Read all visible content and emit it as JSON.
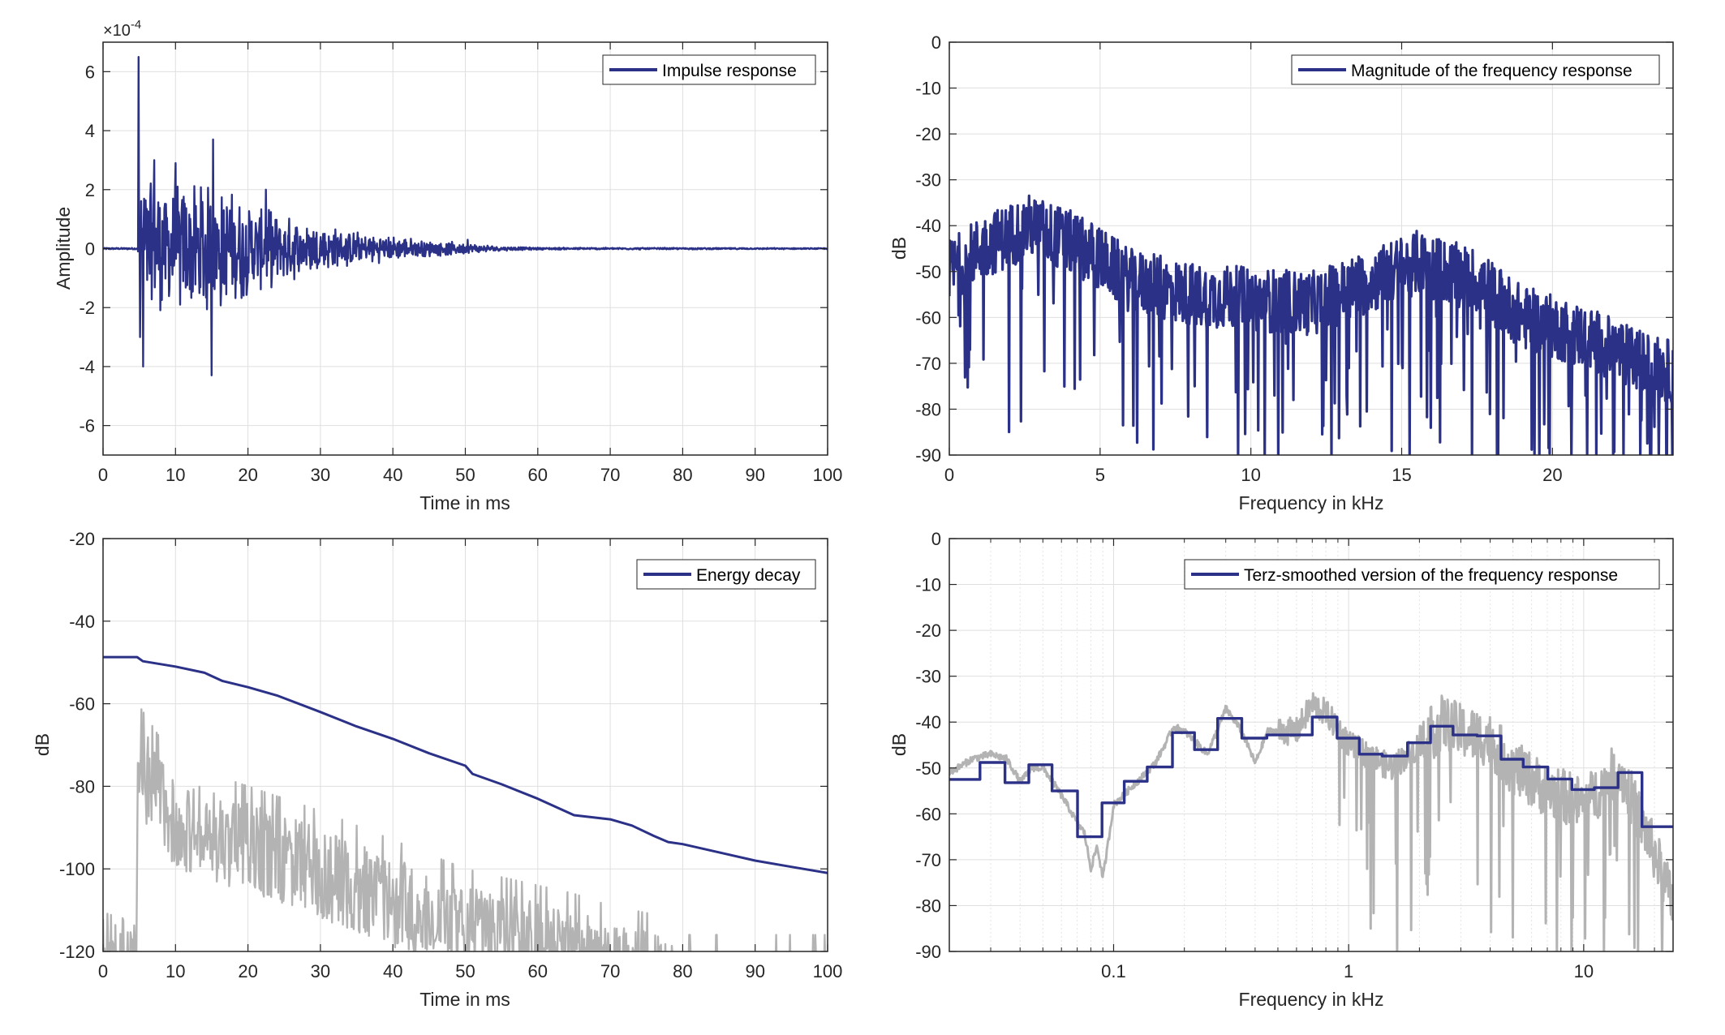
{
  "colors": {
    "series": "#2B3187",
    "gray": "#B3B3B3",
    "grid": "#DFDFDF",
    "axis": "#262626"
  },
  "chart_data": [
    {
      "id": "impulse",
      "type": "line",
      "title": "",
      "xlabel": "Time in ms",
      "ylabel": "Amplitude",
      "y_exponent_label": "×10",
      "y_exponent_power": "-4",
      "xlim": [
        0,
        100
      ],
      "ylim": [
        -7,
        7
      ],
      "xticks": [
        0,
        10,
        20,
        30,
        40,
        50,
        60,
        70,
        80,
        90,
        100
      ],
      "xtick_labels": [
        "0",
        "10",
        "20",
        "30",
        "40",
        "50",
        "60",
        "70",
        "80",
        "90",
        "100"
      ],
      "yticks": [
        -6,
        -4,
        -2,
        0,
        2,
        4,
        6
      ],
      "ytick_labels": [
        "-6",
        "-4",
        "-2",
        "0",
        "2",
        "4",
        "6"
      ],
      "grid": true,
      "legend": {
        "position": "top-right",
        "entries": [
          "Impulse response"
        ]
      },
      "series": [
        {
          "name": "Impulse response",
          "onset_ms": 4.8,
          "peak_points": [
            [
              4.9,
              6.5
            ],
            [
              5.1,
              -3.0
            ],
            [
              5.5,
              -4.0
            ],
            [
              7.1,
              3.0
            ],
            [
              10.0,
              2.9
            ],
            [
              15.2,
              3.7
            ],
            [
              15.0,
              -4.3
            ],
            [
              22.5,
              2.0
            ],
            [
              50.3,
              0.3
            ]
          ],
          "envelope": [
            [
              4.8,
              3.0
            ],
            [
              10,
              2.4
            ],
            [
              15,
              2.4
            ],
            [
              20,
              1.7
            ],
            [
              25,
              1.2
            ],
            [
              30,
              0.9
            ],
            [
              35,
              0.6
            ],
            [
              40,
              0.45
            ],
            [
              45,
              0.3
            ],
            [
              50,
              0.2
            ],
            [
              55,
              0.08
            ],
            [
              60,
              0.04
            ],
            [
              100,
              0.02
            ]
          ]
        }
      ]
    },
    {
      "id": "magnitude",
      "type": "line",
      "title": "",
      "xlabel": "Frequency in kHz",
      "ylabel": "dB",
      "xlim": [
        0,
        24
      ],
      "ylim": [
        -90,
        0
      ],
      "xticks": [
        0,
        5,
        10,
        15,
        20
      ],
      "xtick_labels": [
        "0",
        "5",
        "10",
        "15",
        "20"
      ],
      "yticks": [
        0,
        -10,
        -20,
        -30,
        -40,
        -50,
        -60,
        -70,
        -80,
        -90
      ],
      "ytick_labels": [
        "0",
        "-10",
        "-20",
        "-30",
        "-40",
        "-50",
        "-60",
        "-70",
        "-80",
        "-90"
      ],
      "grid": true,
      "legend": {
        "position": "top-right",
        "entries": [
          "Magnitude of the frequency response"
        ]
      },
      "series": [
        {
          "name": "Magnitude of the frequency response",
          "envelope_db": [
            [
              0,
              -50
            ],
            [
              1,
              -45
            ],
            [
              2.7,
              -40
            ],
            [
              4.5,
              -45
            ],
            [
              6,
              -52
            ],
            [
              8,
              -55
            ],
            [
              10,
              -56
            ],
            [
              12,
              -57
            ],
            [
              14,
              -52
            ],
            [
              15.5,
              -48
            ],
            [
              17.5,
              -52
            ],
            [
              19,
              -60
            ],
            [
              21,
              -64
            ],
            [
              23,
              -70
            ],
            [
              24,
              -72
            ]
          ]
        }
      ]
    },
    {
      "id": "energy_decay",
      "type": "line",
      "title": "",
      "xlabel": "Time in ms",
      "ylabel": "dB",
      "xlim": [
        0,
        100
      ],
      "ylim": [
        -120,
        -20
      ],
      "xticks": [
        0,
        10,
        20,
        30,
        40,
        50,
        60,
        70,
        80,
        90,
        100
      ],
      "xtick_labels": [
        "0",
        "10",
        "20",
        "30",
        "40",
        "50",
        "60",
        "70",
        "80",
        "90",
        "100"
      ],
      "yticks": [
        -20,
        -40,
        -60,
        -80,
        -100,
        -120
      ],
      "ytick_labels": [
        "-20",
        "-40",
        "-60",
        "-80",
        "-100",
        "-120"
      ],
      "grid": true,
      "legend": {
        "position": "top-right",
        "entries": [
          "Energy decay"
        ]
      },
      "series": [
        {
          "name": "Energy decay",
          "x": [
            0,
            4.7,
            5.5,
            10,
            14,
            16.5,
            20,
            24,
            30,
            35,
            40,
            45,
            50,
            51,
            55,
            60,
            65,
            70,
            73,
            76,
            78,
            80,
            85,
            90,
            95,
            100
          ],
          "y": [
            -48.7,
            -48.7,
            -49.7,
            -51,
            -52.5,
            -54.5,
            -56,
            -58,
            -62,
            -65.5,
            -68.5,
            -72,
            -75,
            -77,
            -79.5,
            -83,
            -87,
            -88,
            -89.5,
            -92,
            -93.5,
            -94,
            -96,
            -98,
            -99.5,
            -101
          ]
        },
        {
          "name": "Squared impulse response (dB)",
          "onset_ms": 4.7,
          "envelope": [
            [
              0,
              -110
            ],
            [
              4.6,
              -110
            ],
            [
              4.8,
              -64
            ],
            [
              10,
              -78
            ],
            [
              20,
              -84
            ],
            [
              30,
              -90
            ],
            [
              40,
              -97
            ],
            [
              50,
              -104
            ],
            [
              60,
              -108
            ],
            [
              65,
              -110
            ],
            [
              70,
              -113
            ],
            [
              76,
              -115
            ],
            [
              80,
              -120
            ],
            [
              100,
              -120
            ]
          ]
        }
      ]
    },
    {
      "id": "terz",
      "type": "line",
      "title": "",
      "xlabel": "Frequency in kHz",
      "ylabel": "dB",
      "xscale": "log",
      "xlim": [
        0.02,
        24
      ],
      "ylim": [
        -90,
        0
      ],
      "xticks": [
        0.1,
        1,
        10
      ],
      "xtick_labels": [
        "0.1",
        "1",
        "10"
      ],
      "yticks": [
        0,
        -10,
        -20,
        -30,
        -40,
        -50,
        -60,
        -70,
        -80,
        -90
      ],
      "ytick_labels": [
        "0",
        "-10",
        "-20",
        "-30",
        "-40",
        "-50",
        "-60",
        "-70",
        "-80",
        "-90"
      ],
      "grid": true,
      "legend": {
        "position": "top-right",
        "entries": [
          "Terz-smoothed version of the frequency response"
        ]
      },
      "series": [
        {
          "name": "Terz-smoothed version of the frequency response",
          "edges_khz": [
            0.02,
            0.027,
            0.0345,
            0.0436,
            0.0547,
            0.0702,
            0.0893,
            0.111,
            0.139,
            0.178,
            0.221,
            0.277,
            0.351,
            0.449,
            0.7,
            0.893,
            1.11,
            1.39,
            1.78,
            2.23,
            2.78,
            3.52,
            4.45,
            5.53,
            7.04,
            8.91,
            11.1,
            14.0,
            17.7,
            24
          ],
          "levels_db": [
            -52.5,
            -48.8,
            -53.2,
            -49.3,
            -55,
            -65,
            -57.6,
            -52.9,
            -49.8,
            -42.3,
            -46,
            -39.2,
            -43.5,
            -42.8,
            -38.9,
            -43.5,
            -47,
            -47.4,
            -44.5,
            -40.9,
            -42.8,
            -43,
            -48.1,
            -49.8,
            -52.4,
            -54.7,
            -54.3,
            -51,
            -62.8
          ]
        },
        {
          "name": "Unsmoothed frequency response",
          "points": [
            [
              0.02,
              -51
            ],
            [
              0.025,
              -48
            ],
            [
              0.03,
              -47
            ],
            [
              0.035,
              -48
            ],
            [
              0.04,
              -53
            ],
            [
              0.045,
              -50
            ],
            [
              0.05,
              -50
            ],
            [
              0.06,
              -56
            ],
            [
              0.07,
              -62
            ],
            [
              0.075,
              -64
            ],
            [
              0.08,
              -72
            ],
            [
              0.085,
              -67
            ],
            [
              0.09,
              -74
            ],
            [
              0.1,
              -58
            ],
            [
              0.12,
              -54
            ],
            [
              0.15,
              -49
            ],
            [
              0.18,
              -41
            ],
            [
              0.2,
              -42
            ],
            [
              0.25,
              -47
            ],
            [
              0.3,
              -37
            ],
            [
              0.35,
              -42
            ],
            [
              0.4,
              -49
            ],
            [
              0.45,
              -42
            ],
            [
              0.5,
              -42
            ],
            [
              0.6,
              -42
            ],
            [
              0.7,
              -36
            ],
            [
              0.8,
              -38
            ],
            [
              1.0,
              -45
            ],
            [
              1.5,
              -50
            ],
            [
              2.0,
              -45
            ],
            [
              2.5,
              -40
            ],
            [
              3.0,
              -42
            ],
            [
              4.0,
              -44
            ],
            [
              5.0,
              -50
            ],
            [
              7.0,
              -55
            ],
            [
              10,
              -58
            ],
            [
              14,
              -50
            ],
            [
              17,
              -60
            ],
            [
              24,
              -80
            ]
          ]
        }
      ]
    }
  ]
}
